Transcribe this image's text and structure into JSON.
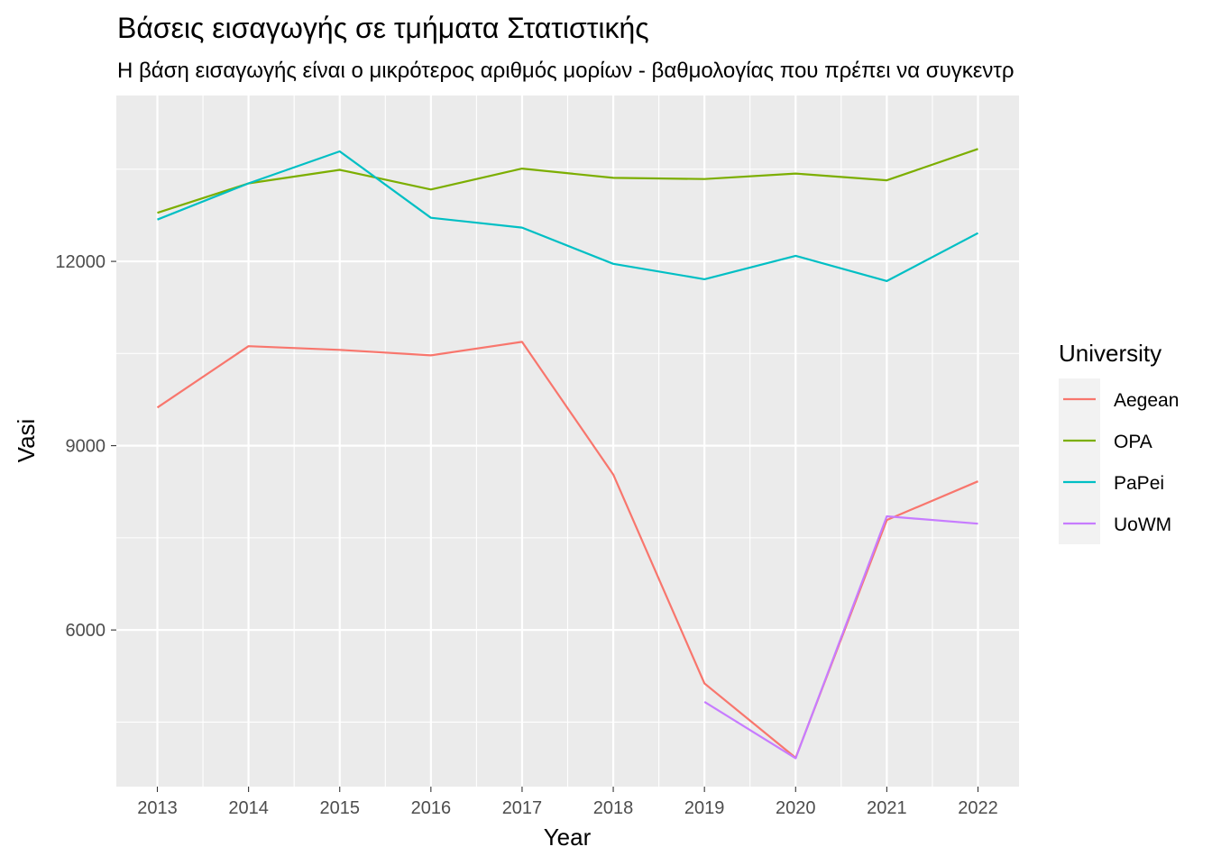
{
  "chart_data": {
    "type": "line",
    "title": "Βάσεις εισαγωγής σε τμήματα Στατιστικής",
    "subtitle": "Η βάση εισαγωγής είναι ο μικρότερος αριθμός μορίων - βαθμολογίας που πρέπει να συγκεντρ",
    "xlabel": "Year",
    "ylabel": "Vasi",
    "x": [
      2013,
      2014,
      2015,
      2016,
      2017,
      2018,
      2019,
      2020,
      2021,
      2022
    ],
    "x_ticks": [
      "2013",
      "2014",
      "2015",
      "2016",
      "2017",
      "2018",
      "2019",
      "2020",
      "2021",
      "2022"
    ],
    "y_ticks": [
      "6000",
      "9000",
      "12000"
    ],
    "xlim": [
      2012.55,
      2022.45
    ],
    "ylim": [
      3450,
      14700
    ],
    "grid": true,
    "legend": {
      "title": "University",
      "placement": "right"
    },
    "series": [
      {
        "name": "Aegean",
        "color": "#F8766D",
        "values": [
          9620,
          10620,
          10560,
          10470,
          10690,
          8530,
          5130,
          3920,
          7790,
          8420
        ]
      },
      {
        "name": "OPA",
        "color": "#7CAE00",
        "values": [
          12790,
          13270,
          13490,
          13170,
          13510,
          13360,
          13340,
          13430,
          13320,
          13830
        ]
      },
      {
        "name": "PaPei",
        "color": "#00BFC4",
        "values": [
          12680,
          13270,
          13790,
          12710,
          12550,
          11960,
          11710,
          12090,
          11680,
          12460
        ]
      },
      {
        "name": "UoWM",
        "color": "#C77CFF",
        "values": [
          null,
          null,
          null,
          null,
          null,
          null,
          4830,
          3910,
          7850,
          7730
        ]
      }
    ]
  }
}
